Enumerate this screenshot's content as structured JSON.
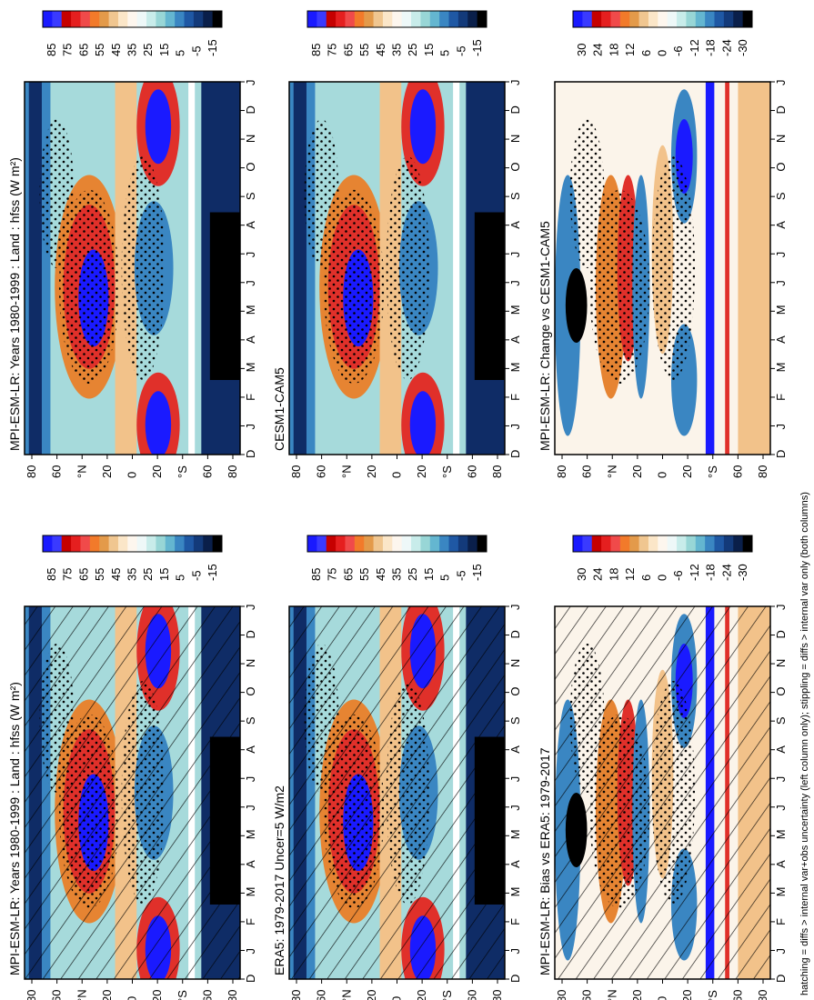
{
  "footnote": "hatching = diffs > internal var+obs uncertainty (left column only); stippling = diffs > internal var only (both columns)",
  "month_labels": [
    "D",
    "J",
    "F",
    "M",
    "A",
    "M",
    "J",
    "J",
    "A",
    "S",
    "O",
    "N",
    "D",
    "J"
  ],
  "lat_labels": [
    "80",
    "60",
    "°N",
    "20",
    "0",
    "20",
    "°S",
    "60",
    "80"
  ],
  "colorbars": {
    "abs": {
      "labels": [
        "85",
        "75",
        "65",
        "55",
        "45",
        "35",
        "25",
        "15",
        "5",
        "-5",
        "-15"
      ],
      "colors": [
        "#1a1aff",
        "#3a3aff",
        "#c60000",
        "#e51f1f",
        "#f04a4a",
        "#f27a2a",
        "#e39a4a",
        "#f0c690",
        "#fbe6c8",
        "#fdf6ee",
        "#eef8f8",
        "#c8ecea",
        "#98d6d6",
        "#64b6d0",
        "#3a86c2",
        "#1f58a4",
        "#133a7a",
        "#0a1f4a",
        "#000000"
      ]
    },
    "diff": {
      "labels": [
        "30",
        "24",
        "18",
        "12",
        "6",
        "0",
        "-6",
        "-12",
        "-18",
        "-24",
        "-30"
      ],
      "colors": [
        "#1a1aff",
        "#3a3aff",
        "#c60000",
        "#e51f1f",
        "#f04a4a",
        "#f27a2a",
        "#e39a4a",
        "#f0c690",
        "#fbe6c8",
        "#fdf6ee",
        "#eef8f8",
        "#c8ecea",
        "#98d6d6",
        "#64b6d0",
        "#3a86c2",
        "#1f58a4",
        "#133a7a",
        "#0a1f4a",
        "#000000"
      ]
    }
  },
  "colors": {
    "neg_strong": "#000000",
    "neg_dark": "#0f2c66",
    "neg_mid": "#3a86c2",
    "neg_light": "#a6dadb",
    "neutral": "#fbf4ea",
    "pos_light": "#f2c28a",
    "pos_mid": "#e68432",
    "pos_red": "#e0302a",
    "pos_strong": "#1a1aff"
  },
  "chart_data": [
    {
      "type": "heatmap",
      "panel": "top-left",
      "title": "MPI-ESM-LR: Years 1980-1999 : Land : hfss (W m²)",
      "xlabel": "",
      "ylabel": "",
      "x": [
        "D",
        "J",
        "F",
        "M",
        "A",
        "M",
        "J",
        "J",
        "A",
        "S",
        "O",
        "N",
        "D",
        "J"
      ],
      "y": [
        "80",
        "60",
        "°N",
        "20",
        "0",
        "20",
        "°S",
        "60",
        "80"
      ],
      "colorbar": "abs",
      "overlay": "hatching+stippling",
      "pattern_seed": 1
    },
    {
      "type": "heatmap",
      "panel": "top-right",
      "title": "MPI-ESM-LR: Years 1980-1999 : Land : hfss (W m²)",
      "xlabel": "",
      "ylabel": "",
      "x": [
        "D",
        "J",
        "F",
        "M",
        "A",
        "M",
        "J",
        "J",
        "A",
        "S",
        "O",
        "N",
        "D",
        "J"
      ],
      "y": [
        "80",
        "60",
        "°N",
        "20",
        "0",
        "20",
        "°S",
        "60",
        "80"
      ],
      "colorbar": "abs",
      "overlay": "stippling",
      "pattern_seed": 1
    },
    {
      "type": "heatmap",
      "panel": "middle-left",
      "title": "ERA5: 1979-2017 Uncer=5 W/m2",
      "xlabel": "",
      "ylabel": "",
      "x": [
        "D",
        "J",
        "F",
        "M",
        "A",
        "M",
        "J",
        "J",
        "A",
        "S",
        "O",
        "N",
        "D",
        "J"
      ],
      "y": [
        "80",
        "60",
        "°N",
        "20",
        "0",
        "20",
        "°S",
        "60",
        "80"
      ],
      "colorbar": "abs",
      "overlay": "hatching+stippling",
      "pattern_seed": 2
    },
    {
      "type": "heatmap",
      "panel": "middle-right",
      "title": "CESM1-CAM5",
      "xlabel": "",
      "ylabel": "",
      "x": [
        "D",
        "J",
        "F",
        "M",
        "A",
        "M",
        "J",
        "J",
        "A",
        "S",
        "O",
        "N",
        "D",
        "J"
      ],
      "y": [
        "80",
        "60",
        "°N",
        "20",
        "0",
        "20",
        "°S",
        "60",
        "80"
      ],
      "colorbar": "abs",
      "overlay": "stippling",
      "pattern_seed": 3
    },
    {
      "type": "heatmap",
      "panel": "bottom-left",
      "title": "MPI-ESM-LR: Bias vs ERA5: 1979-2017",
      "xlabel": "",
      "ylabel": "",
      "x": [
        "D",
        "J",
        "F",
        "M",
        "A",
        "M",
        "J",
        "J",
        "A",
        "S",
        "O",
        "N",
        "D",
        "J"
      ],
      "y": [
        "80",
        "60",
        "°N",
        "20",
        "0",
        "20",
        "°S",
        "60",
        "80"
      ],
      "colorbar": "diff",
      "overlay": "hatching+stippling",
      "pattern_seed": 4
    },
    {
      "type": "heatmap",
      "panel": "bottom-right",
      "title": "MPI-ESM-LR: Change vs CESM1-CAM5",
      "xlabel": "",
      "ylabel": "",
      "x": [
        "D",
        "J",
        "F",
        "M",
        "A",
        "M",
        "J",
        "J",
        "A",
        "S",
        "O",
        "N",
        "D",
        "J"
      ],
      "y": [
        "80",
        "60",
        "°N",
        "20",
        "0",
        "20",
        "°S",
        "60",
        "80"
      ],
      "colorbar": "diff",
      "overlay": "stippling",
      "pattern_seed": 5
    }
  ]
}
